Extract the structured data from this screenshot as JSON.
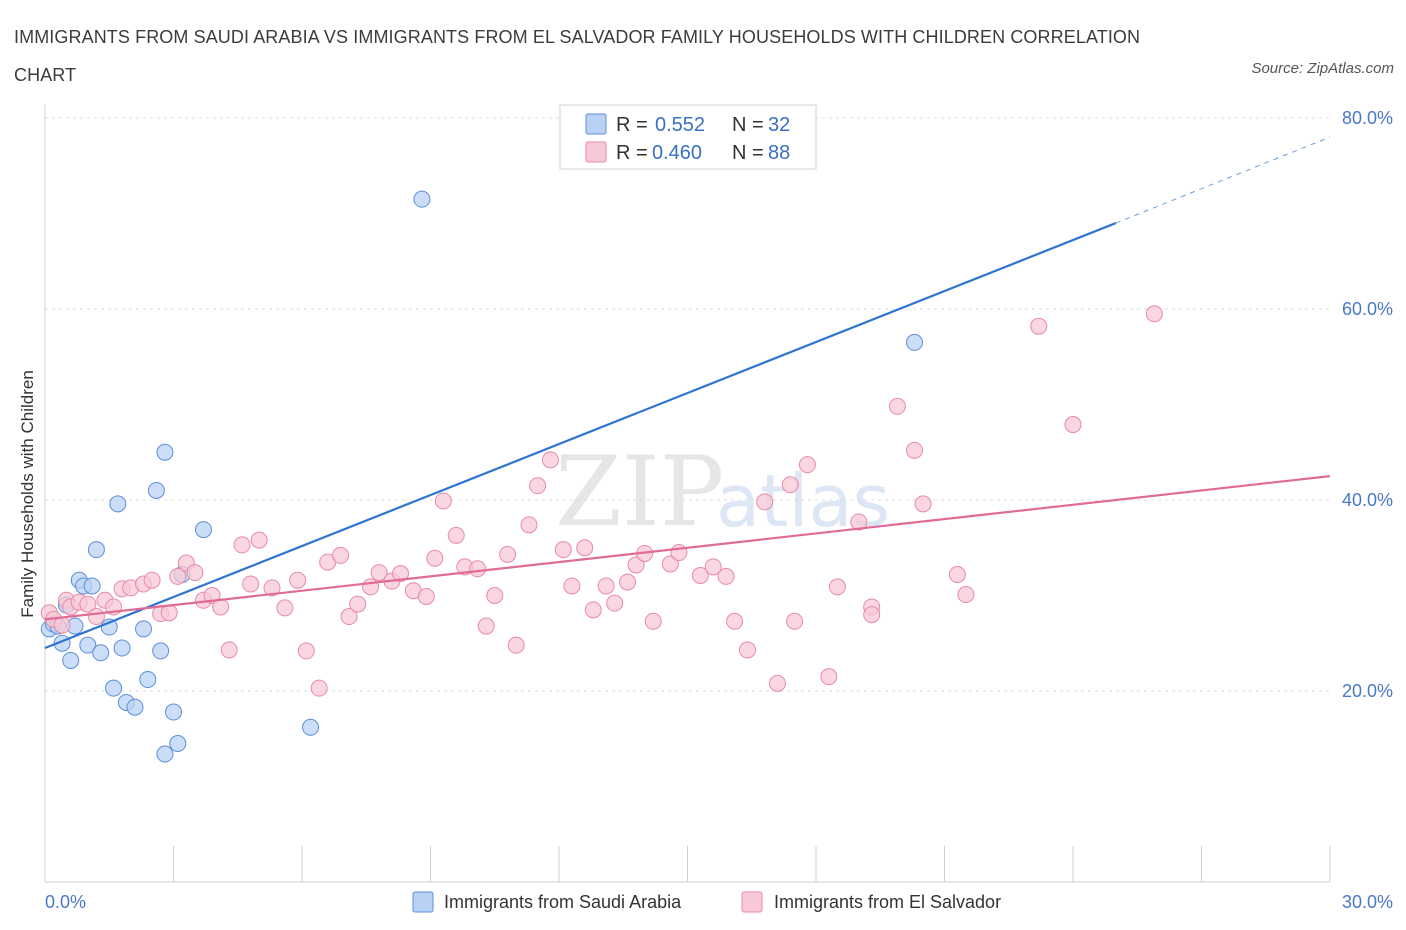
{
  "chart_data": {
    "type": "scatter",
    "title": "IMMIGRANTS FROM SAUDI ARABIA VS IMMIGRANTS FROM EL SALVADOR FAMILY HOUSEHOLDS WITH CHILDREN CORRELATION CHART",
    "source": "Source: ZipAtlas.com",
    "ylabel": "Family Households with Children",
    "xlim": [
      0,
      30
    ],
    "ylim": [
      0,
      80
    ],
    "x_ticks": [
      {
        "value": 0,
        "label": "0.0%"
      },
      {
        "value": 30,
        "label": "30.0%"
      }
    ],
    "y_ticks": [
      {
        "value": 20,
        "label": "20.0%"
      },
      {
        "value": 40,
        "label": "40.0%"
      },
      {
        "value": 60,
        "label": "60.0%"
      },
      {
        "value": 80,
        "label": "80.0%"
      }
    ],
    "watermark": {
      "zip": "ZIP",
      "atlas": "atlas"
    },
    "legend": {
      "r_label": "R =",
      "n_label": "N =",
      "entries": [
        {
          "r": "0.552",
          "n": "32"
        },
        {
          "r": "0.460",
          "n": "88"
        }
      ]
    },
    "series": [
      {
        "name": "Immigrants from Saudi Arabia",
        "color": "#5b8fd8",
        "fill": "#b9d2f4",
        "line_color": "#2f74d0",
        "trend": {
          "x0": 0,
          "y0": 24.5,
          "x1": 25,
          "y1": 69,
          "dash_to_x": 30,
          "dash_to_y": 78
        },
        "points": [
          [
            0.1,
            26.5
          ],
          [
            0.2,
            27
          ],
          [
            0.3,
            26.8
          ],
          [
            0.4,
            25
          ],
          [
            0.5,
            29
          ],
          [
            0.6,
            23.2
          ],
          [
            0.7,
            26.8
          ],
          [
            0.8,
            31.6
          ],
          [
            0.9,
            31
          ],
          [
            1.0,
            24.8
          ],
          [
            1.1,
            31
          ],
          [
            1.2,
            34.8
          ],
          [
            1.3,
            24
          ],
          [
            1.5,
            26.7
          ],
          [
            1.6,
            20.3
          ],
          [
            1.7,
            39.6
          ],
          [
            1.8,
            24.5
          ],
          [
            1.9,
            18.8
          ],
          [
            2.1,
            18.3
          ],
          [
            2.3,
            26.5
          ],
          [
            2.4,
            21.2
          ],
          [
            2.6,
            41
          ],
          [
            2.7,
            24.2
          ],
          [
            2.8,
            45
          ],
          [
            3.0,
            17.8
          ],
          [
            3.1,
            14.5
          ],
          [
            3.2,
            32.2
          ],
          [
            2.8,
            13.4
          ],
          [
            3.7,
            36.9
          ],
          [
            6.2,
            16.2
          ],
          [
            8.8,
            71.5
          ],
          [
            20.3,
            56.5
          ]
        ]
      },
      {
        "name": "Immigrants from El Salvador",
        "color": "#e88aa8",
        "fill": "#f7c8d6",
        "line_color": "#e06c96",
        "trend": {
          "x0": 0,
          "y0": 27.5,
          "x1": 30,
          "y1": 42.5
        },
        "points": [
          [
            0.1,
            28.2
          ],
          [
            0.2,
            27.5
          ],
          [
            0.4,
            26.9
          ],
          [
            0.5,
            29.5
          ],
          [
            0.6,
            28.8
          ],
          [
            0.8,
            29.3
          ],
          [
            1.0,
            29.1
          ],
          [
            1.2,
            27.8
          ],
          [
            1.4,
            29.5
          ],
          [
            1.6,
            28.8
          ],
          [
            1.8,
            30.7
          ],
          [
            2.0,
            30.8
          ],
          [
            2.3,
            31.2
          ],
          [
            2.5,
            31.6
          ],
          [
            2.7,
            28.1
          ],
          [
            2.9,
            28.2
          ],
          [
            3.1,
            32
          ],
          [
            3.3,
            33.4
          ],
          [
            3.5,
            32.4
          ],
          [
            3.7,
            29.5
          ],
          [
            3.9,
            30
          ],
          [
            4.1,
            28.8
          ],
          [
            4.3,
            24.3
          ],
          [
            4.6,
            35.3
          ],
          [
            4.8,
            31.2
          ],
          [
            5.0,
            35.8
          ],
          [
            5.3,
            30.8
          ],
          [
            5.6,
            28.7
          ],
          [
            5.9,
            31.6
          ],
          [
            6.1,
            24.2
          ],
          [
            6.4,
            20.3
          ],
          [
            6.6,
            33.5
          ],
          [
            6.9,
            34.2
          ],
          [
            7.1,
            27.8
          ],
          [
            7.3,
            29.1
          ],
          [
            7.6,
            30.9
          ],
          [
            7.8,
            32.4
          ],
          [
            8.1,
            31.5
          ],
          [
            8.3,
            32.3
          ],
          [
            8.6,
            30.5
          ],
          [
            8.9,
            29.9
          ],
          [
            9.1,
            33.9
          ],
          [
            9.3,
            39.9
          ],
          [
            9.6,
            36.3
          ],
          [
            9.8,
            33
          ],
          [
            10.1,
            32.8
          ],
          [
            10.3,
            26.8
          ],
          [
            10.5,
            30
          ],
          [
            10.8,
            34.3
          ],
          [
            11.0,
            24.8
          ],
          [
            11.3,
            37.4
          ],
          [
            11.5,
            41.5
          ],
          [
            11.8,
            44.2
          ],
          [
            12.1,
            34.8
          ],
          [
            12.3,
            31
          ],
          [
            12.6,
            35
          ],
          [
            12.8,
            28.5
          ],
          [
            13.1,
            31
          ],
          [
            13.3,
            29.2
          ],
          [
            13.6,
            31.4
          ],
          [
            13.8,
            33.2
          ],
          [
            14.0,
            34.4
          ],
          [
            14.2,
            27.3
          ],
          [
            14.6,
            33.3
          ],
          [
            14.8,
            34.5
          ],
          [
            15.3,
            32.1
          ],
          [
            15.6,
            33
          ],
          [
            15.9,
            32
          ],
          [
            16.1,
            27.3
          ],
          [
            16.4,
            24.3
          ],
          [
            16.8,
            39.8
          ],
          [
            17.1,
            20.8
          ],
          [
            17.4,
            41.6
          ],
          [
            17.5,
            27.3
          ],
          [
            17.8,
            43.7
          ],
          [
            18.3,
            21.5
          ],
          [
            18.5,
            30.9
          ],
          [
            19.0,
            37.7
          ],
          [
            19.3,
            28.8
          ],
          [
            19.9,
            49.8
          ],
          [
            19.3,
            28
          ],
          [
            20.3,
            45.2
          ],
          [
            20.5,
            39.6
          ],
          [
            21.3,
            32.2
          ],
          [
            21.5,
            30.1
          ],
          [
            23.2,
            58.2
          ],
          [
            24.0,
            47.9
          ],
          [
            25.9,
            59.5
          ]
        ]
      }
    ]
  }
}
